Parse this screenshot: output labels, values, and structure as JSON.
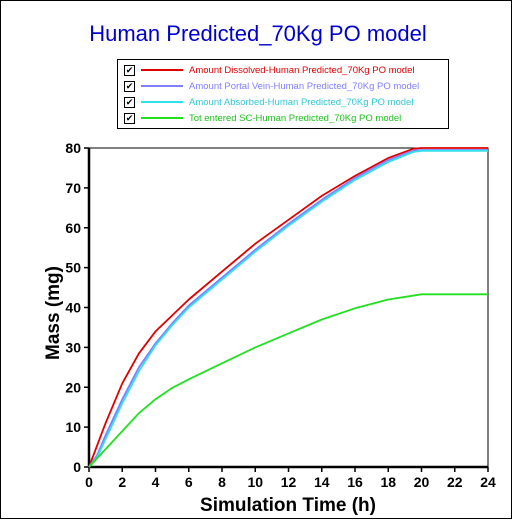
{
  "title": "Human Predicted_70Kg PO model",
  "legend": [
    {
      "check": "✔",
      "label": "Amount Dissolved-Human Predicted_70Kg PO model",
      "color": "#e00000"
    },
    {
      "check": "✔",
      "label": "Amount Portal Vein-Human Predicted_70Kg PO model",
      "color": "#7f7fff"
    },
    {
      "check": "✔",
      "label": "Amount Absorbed-Human Predicted_70Kg PO model",
      "color": "#33e0e8"
    },
    {
      "check": "✔",
      "label": "Tot entered SC-Human Predicted_70Kg PO model",
      "color": "#20e020"
    }
  ],
  "chart_data": {
    "type": "line",
    "xlabel": "Simulation Time (h)",
    "ylabel": "Mass (mg)",
    "xlim": [
      0,
      24
    ],
    "ylim": [
      0,
      80
    ],
    "xticks": [
      0,
      2,
      4,
      6,
      8,
      10,
      12,
      14,
      16,
      18,
      20,
      22,
      24
    ],
    "yticks": [
      0,
      10,
      20,
      30,
      40,
      50,
      60,
      70,
      80
    ],
    "grid": false,
    "legend_position": "top",
    "series": [
      {
        "name": "Amount Dissolved-Human Predicted_70Kg PO model",
        "color": "#e00000",
        "x": [
          0,
          1,
          2,
          3,
          4,
          5,
          6,
          8,
          10,
          12,
          14,
          16,
          18,
          19.5,
          20,
          24
        ],
        "y": [
          0,
          11,
          21,
          28.5,
          34,
          38,
          42,
          49,
          56,
          62,
          68,
          73,
          77.5,
          79.8,
          80,
          80
        ]
      },
      {
        "name": "Amount Portal Vein-Human Predicted_70Kg PO model",
        "color": "#7f7fff",
        "x": [
          0,
          0.5,
          1,
          2,
          3,
          4,
          5,
          6,
          8,
          10,
          12,
          14,
          16,
          18,
          19.5,
          20,
          24
        ],
        "y": [
          0,
          3,
          8,
          17,
          25,
          31,
          36,
          40.5,
          47.5,
          54.5,
          61,
          67,
          72.5,
          77,
          79.3,
          79.5,
          79.5
        ]
      },
      {
        "name": "Amount Absorbed-Human Predicted_70Kg PO model",
        "color": "#33e0e8",
        "x": [
          0,
          0.5,
          1,
          2,
          3,
          4,
          5,
          6,
          8,
          10,
          12,
          14,
          16,
          18,
          19.5,
          20,
          24
        ],
        "y": [
          0,
          2.5,
          7,
          16,
          24,
          30.5,
          35.5,
          40,
          47,
          54,
          60.5,
          66.5,
          72,
          76.5,
          79,
          79.3,
          79.3
        ]
      },
      {
        "name": "Tot entered SC-Human Predicted_70Kg PO model",
        "color": "#20e020",
        "x": [
          0,
          1,
          2,
          3,
          4,
          5,
          6,
          8,
          10,
          12,
          14,
          16,
          18,
          20,
          24
        ],
        "y": [
          0,
          4.5,
          9,
          13.5,
          17,
          19.8,
          22,
          26,
          30,
          33.5,
          37,
          39.8,
          42,
          43.3,
          43.3
        ]
      }
    ]
  }
}
